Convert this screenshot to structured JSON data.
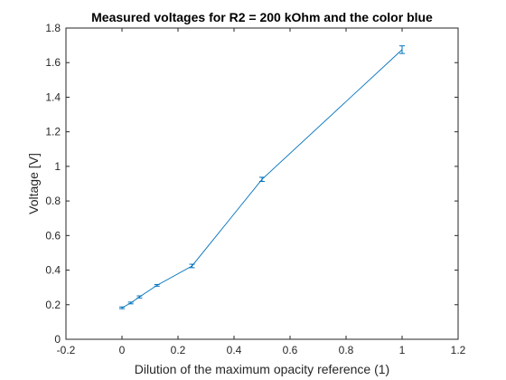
{
  "chart_data": {
    "type": "line",
    "title": "Measured voltages for R2 = 200 kOhm and the color blue",
    "xlabel": "Dilution of the maximum opacity reference (1)",
    "ylabel": "Voltage [V]",
    "xlim": [
      -0.2,
      1.2
    ],
    "ylim": [
      0,
      1.8
    ],
    "xticks": [
      -0.2,
      0,
      0.2,
      0.4,
      0.6,
      0.8,
      1,
      1.2
    ],
    "xtick_labels": [
      "-0.2",
      "0",
      "0.2",
      "0.4",
      "0.6",
      "0.8",
      "1",
      "1.2"
    ],
    "yticks": [
      0,
      0.2,
      0.4,
      0.6,
      0.8,
      1,
      1.2,
      1.4,
      1.6,
      1.8
    ],
    "ytick_labels": [
      "0",
      "0.2",
      "0.4",
      "0.6",
      "0.8",
      "1",
      "1.2",
      "1.4",
      "1.6",
      "1.8"
    ],
    "grid": false,
    "series": [
      {
        "x": [
          0,
          0.03125,
          0.0625,
          0.125,
          0.25,
          0.5,
          1
        ],
        "y": [
          0.182,
          0.21,
          0.245,
          0.312,
          0.424,
          0.925,
          1.675
        ],
        "error": [
          0.005,
          0.005,
          0.006,
          0.005,
          0.01,
          0.012,
          0.022
        ],
        "color": "#0072BD"
      }
    ]
  }
}
